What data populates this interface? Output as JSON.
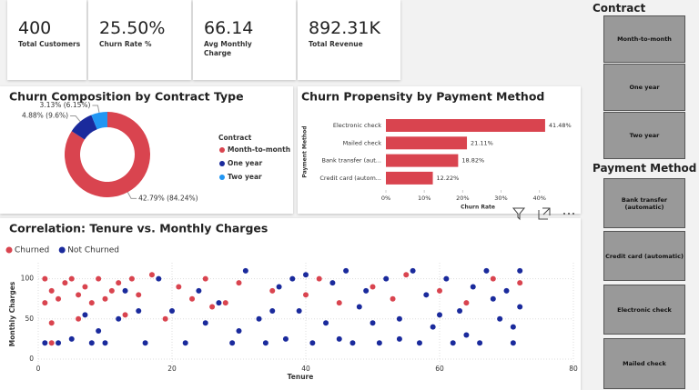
{
  "cards": [
    {
      "value": "400",
      "label": "Total Customers"
    },
    {
      "value": "25.50%",
      "label": "Churn Rate %"
    },
    {
      "value": "66.14",
      "label": "Avg Monthly Charge"
    },
    {
      "value": "892.31K",
      "label": "Total Revenue"
    }
  ],
  "slicers": [
    {
      "title": "Contract",
      "options": [
        "Month-to-month",
        "One year",
        "Two year"
      ]
    },
    {
      "title": "Payment Method",
      "options": [
        "Bank transfer (automatic)",
        "Credit card (automatic)",
        "Electronic check",
        "Mailed check"
      ]
    }
  ],
  "chart_data": [
    {
      "type": "pie",
      "donut": true,
      "title": "Churn Composition by Contract Type",
      "legend_title": "Contract",
      "legend": "right",
      "categories": [
        "Month-to-month",
        "One year",
        "Two year"
      ],
      "values": [
        84.24,
        9.6,
        6.15
      ],
      "value_labels": [
        "42.79% (84.24%)",
        "4.88% (9.6%)",
        "3.13% (6.15%)"
      ],
      "colors": [
        "#d9444f",
        "#1a2a9c",
        "#2196f3"
      ]
    },
    {
      "type": "bar",
      "orientation": "horizontal",
      "title": "Churn Propensity by Payment Method",
      "categories": [
        "Electronic check",
        "Mailed check",
        "Bank transfer (aut...",
        "Credit card (autom..."
      ],
      "values": [
        41.48,
        21.11,
        18.82,
        12.22
      ],
      "value_labels": [
        "41.48%",
        "21.11%",
        "18.82%",
        "12.22%"
      ],
      "color": "#d9444f",
      "xlim": [
        0,
        46
      ],
      "xticks": [
        {
          "value": 0,
          "label": "0%"
        },
        {
          "value": 10,
          "label": "10%"
        },
        {
          "value": 20,
          "label": "20%"
        },
        {
          "value": 30,
          "label": "30%"
        },
        {
          "value": 40,
          "label": "40%"
        }
      ],
      "xlabel": "Churn Rate",
      "ylabel": "Payment Method"
    },
    {
      "type": "scatter",
      "title": "Correlation: Tenure vs. Monthly Charges",
      "xlabel": "Tenure",
      "ylabel": "Monthly Charges",
      "grid": true,
      "legend": "top-left",
      "xlim": [
        0,
        80
      ],
      "ylim": [
        -8,
        120
      ],
      "xticks": [
        0,
        20,
        40,
        60,
        80
      ],
      "yticks": [
        0,
        50,
        100
      ],
      "series": [
        {
          "name": "Churned",
          "color": "#d9444f",
          "x": [
            1,
            1,
            2,
            2,
            3,
            4,
            5,
            6,
            7,
            8,
            9,
            10,
            11,
            12,
            13,
            14,
            15,
            17,
            19,
            21,
            23,
            25,
            28,
            30,
            35,
            40,
            42,
            45,
            50,
            53,
            55,
            60,
            64,
            68,
            72,
            2,
            6,
            26
          ],
          "y": [
            70,
            100,
            85,
            45,
            75,
            95,
            100,
            80,
            90,
            70,
            100,
            75,
            85,
            95,
            55,
            100,
            80,
            105,
            50,
            90,
            75,
            100,
            70,
            95,
            85,
            80,
            100,
            70,
            90,
            75,
            105,
            85,
            70,
            100,
            95,
            20,
            50,
            65
          ]
        },
        {
          "name": "Not Churned",
          "color": "#1a2a9c",
          "x": [
            1,
            3,
            5,
            7,
            8,
            10,
            12,
            13,
            16,
            18,
            20,
            22,
            24,
            25,
            27,
            29,
            31,
            33,
            34,
            36,
            38,
            39,
            41,
            43,
            44,
            46,
            47,
            48,
            49,
            51,
            52,
            54,
            56,
            57,
            58,
            59,
            61,
            62,
            63,
            65,
            66,
            67,
            69,
            70,
            71,
            72,
            72,
            71,
            45,
            15,
            9,
            30,
            37,
            54,
            64,
            35,
            40,
            60,
            68,
            50
          ],
          "y": [
            20,
            20,
            25,
            55,
            20,
            20,
            50,
            85,
            20,
            100,
            60,
            20,
            85,
            45,
            70,
            20,
            110,
            50,
            20,
            90,
            100,
            60,
            20,
            45,
            95,
            110,
            20,
            65,
            85,
            20,
            100,
            50,
            110,
            20,
            80,
            40,
            100,
            20,
            60,
            90,
            20,
            110,
            50,
            85,
            20,
            110,
            65,
            40,
            25,
            60,
            35,
            35,
            25,
            25,
            30,
            60,
            105,
            55,
            75,
            45
          ]
        }
      ]
    }
  ]
}
